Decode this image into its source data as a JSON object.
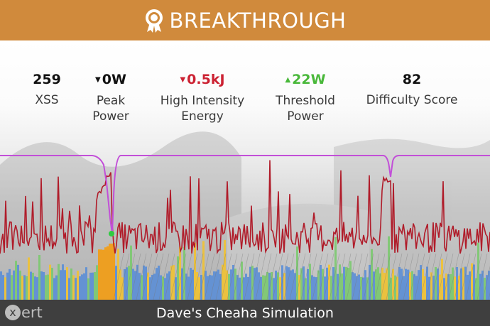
{
  "banner": {
    "title": "BREAKTHROUGH",
    "icon": "award-medal-icon",
    "color": "#d08a3c"
  },
  "stats": [
    {
      "value": "259",
      "label": "XSS",
      "trend": "none",
      "color": "#111111"
    },
    {
      "value": "0W",
      "label": "Peak Power",
      "trend": "down",
      "color": "#111111"
    },
    {
      "value": "0.5kJ",
      "label": "High Intensity Energy",
      "trend": "down",
      "color": "#cc2233"
    },
    {
      "value": "22W",
      "label": "Threshold Power",
      "trend": "up",
      "color": "#49b83a"
    },
    {
      "value": "82",
      "label": "Difficulty Score",
      "trend": "none",
      "color": "#111111"
    }
  ],
  "footer": {
    "title": "Dave's Cheaha Simulation",
    "logo": "xert",
    "logo_x": "x",
    "logo_rest": "ert"
  },
  "colors": {
    "power_line": "#b01c2a",
    "mpa_line": "#c24fd8",
    "marker": "#2ecc40",
    "bars_blue": "#5b8ed6",
    "bars_yellow": "#f1c232",
    "bars_orange": "#f39c12",
    "bars_green": "#7bc96f"
  }
}
